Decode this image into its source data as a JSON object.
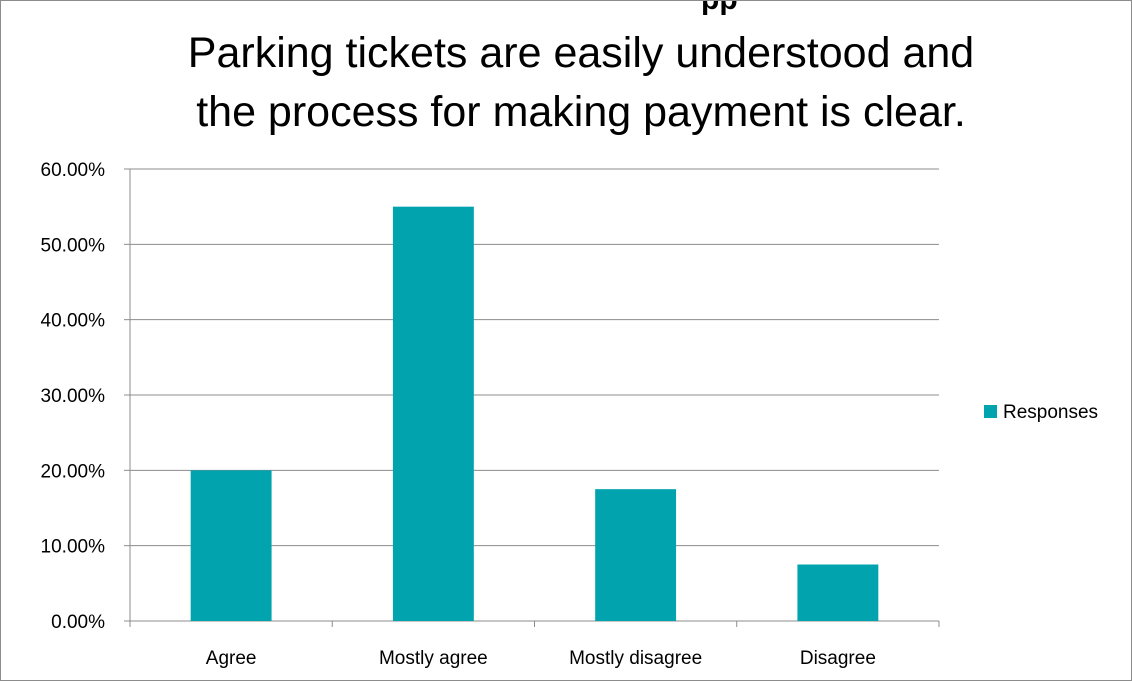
{
  "clipped_header": "pp",
  "chart_data": {
    "type": "bar",
    "title_lines": [
      "Parking tickets are easily understood and",
      "the process for making payment is clear."
    ],
    "categories": [
      "Agree",
      "Mostly agree",
      "Mostly disagree",
      "Disagree"
    ],
    "series": [
      {
        "name": "Responses",
        "values": [
          0.2,
          0.55,
          0.175,
          0.075
        ],
        "color": "#00A3AE"
      }
    ],
    "ylim": [
      0,
      0.6
    ],
    "yticks": [
      0,
      0.1,
      0.2,
      0.3,
      0.4,
      0.5,
      0.6
    ],
    "ytick_labels": [
      "0.00%",
      "10.00%",
      "20.00%",
      "30.00%",
      "40.00%",
      "50.00%",
      "60.00%"
    ],
    "grid": true,
    "legend_position": "right",
    "xlabel": "",
    "ylabel": ""
  }
}
